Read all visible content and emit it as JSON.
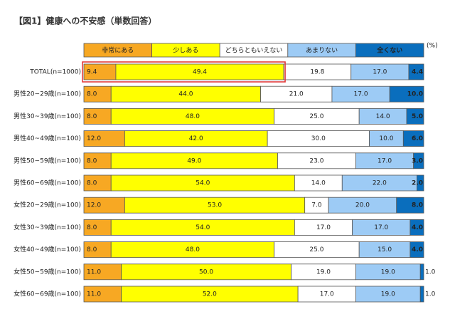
{
  "chart_data": {
    "type": "stacked-bar-100",
    "title": "【図1】健康への不安感（単数回答）",
    "unit": "(%)",
    "xlim": [
      0,
      100
    ],
    "categories": [
      "TOTAL(n=1000)",
      "男性20~29歳(n=100)",
      "男性30~39歳(n=100)",
      "男性40~49歳(n=100)",
      "男性50~59歳(n=100)",
      "男性60~69歳(n=100)",
      "女性20~29歳(n=100)",
      "女性30~39歳(n=100)",
      "女性40~49歳(n=100)",
      "女性50~59歳(n=100)",
      "女性60~69歳(n=100)"
    ],
    "series": [
      {
        "name": "非常にある",
        "color": "#f7a823",
        "values": [
          9.4,
          8,
          8,
          12,
          8,
          8,
          12,
          8,
          8,
          11,
          11
        ],
        "value_labels": [
          "9.4",
          "8.0",
          "8.0",
          "12.0",
          "8.0",
          "8.0",
          "12.0",
          "8.0",
          "8.0",
          "11.0",
          "11.0"
        ]
      },
      {
        "name": "少しある",
        "color": "#ffff00",
        "values": [
          49.4,
          44,
          48,
          42,
          49,
          54,
          53,
          54,
          48,
          50,
          52
        ],
        "value_labels": [
          "49.4",
          "44.0",
          "48.0",
          "42.0",
          "49.0",
          "54.0",
          "53.0",
          "54.0",
          "48.0",
          "50.0",
          "52.0"
        ]
      },
      {
        "name": "どちらともいえない",
        "color": "#ffffff",
        "values": [
          19.8,
          21,
          25,
          30,
          23,
          14,
          7,
          17,
          25,
          19,
          17
        ],
        "value_labels": [
          "19.8",
          "21.0",
          "25.0",
          "30.0",
          "23.0",
          "14.0",
          "7.0",
          "17.0",
          "25.0",
          "19.0",
          "17.0"
        ]
      },
      {
        "name": "あまりない",
        "color": "#9dcbf5",
        "values": [
          17,
          17,
          14,
          10,
          17,
          22,
          20,
          17,
          15,
          19,
          19
        ],
        "value_labels": [
          "17.0",
          "17.0",
          "14.0",
          "10.0",
          "17.0",
          "22.0",
          "20.0",
          "17.0",
          "15.0",
          "19.0",
          "19.0"
        ]
      },
      {
        "name": "全くない",
        "color": "#0a6ebd",
        "values": [
          4.4,
          10,
          5,
          6,
          3,
          2,
          8,
          4,
          4,
          1,
          1
        ],
        "value_labels": [
          "4.4",
          "10.0",
          "5.0",
          "6.0",
          "3.0",
          "2.0",
          "8.0",
          "4.0",
          "4.0",
          "1.0",
          "1.0"
        ]
      }
    ]
  }
}
